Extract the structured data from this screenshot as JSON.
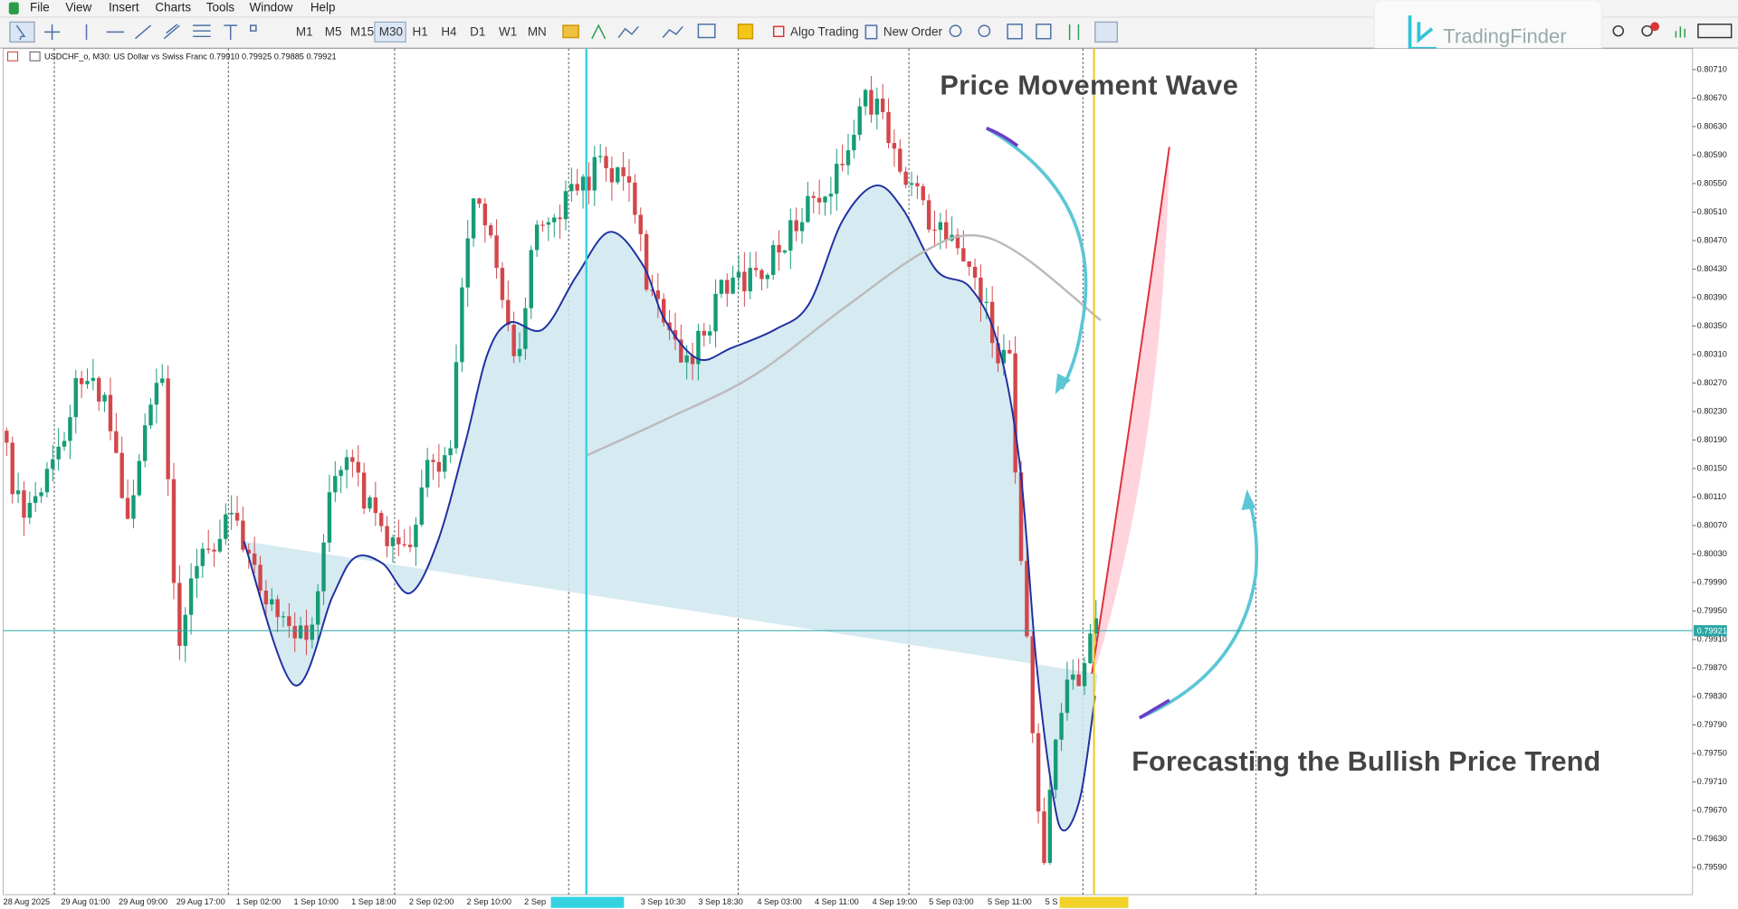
{
  "menu": [
    "File",
    "View",
    "Insert",
    "Charts",
    "Tools",
    "Window",
    "Help"
  ],
  "toolbar": {
    "timeframes": [
      "M1",
      "M5",
      "M15",
      "M30",
      "H1",
      "H4",
      "D1",
      "W1",
      "MN"
    ],
    "algo_trading": "Algo Trading",
    "new_order": "New Order"
  },
  "logo": "TradingFinder",
  "chart": {
    "info": "USDCHF_o, M30: US Dollar vs Swiss Franc  0.79910 0.79925 0.79885 0.79921",
    "annotations": [
      "Price Movement Wave",
      "Forecasting the Bullish Price Trend"
    ]
  },
  "price_axis": {
    "labels": [
      "0.80710",
      "0.80670",
      "0.80630",
      "0.80590",
      "0.80550",
      "0.80510",
      "0.80470",
      "0.80430",
      "0.80390",
      "0.80350",
      "0.80310",
      "0.80270",
      "0.80230",
      "0.80190",
      "0.80150",
      "0.80110",
      "0.80070",
      "0.80030",
      "0.79990",
      "0.79950",
      "0.79910",
      "0.79870",
      "0.79830",
      "0.79790",
      "0.79750",
      "0.79710",
      "0.79670",
      "0.79630",
      "0.79590"
    ],
    "current": "0.79921"
  },
  "time_axis": {
    "labels": [
      "28 Aug 2025",
      "29 Aug 01:00",
      "29 Aug 09:00",
      "29 Aug 17:00",
      "1 Sep 02:00",
      "1 Sep 10:00",
      "1 Sep 18:00",
      "2 Sep 02:00",
      "2 Sep 10:00",
      "2 Sep",
      "3 Sep 10:30",
      "3 Sep 18:30",
      "4 Sep 03:00",
      "4 Sep 11:00",
      "4 Sep 19:00",
      "5 Sep 03:00",
      "5 Sep 11:00",
      "5 S"
    ]
  }
}
